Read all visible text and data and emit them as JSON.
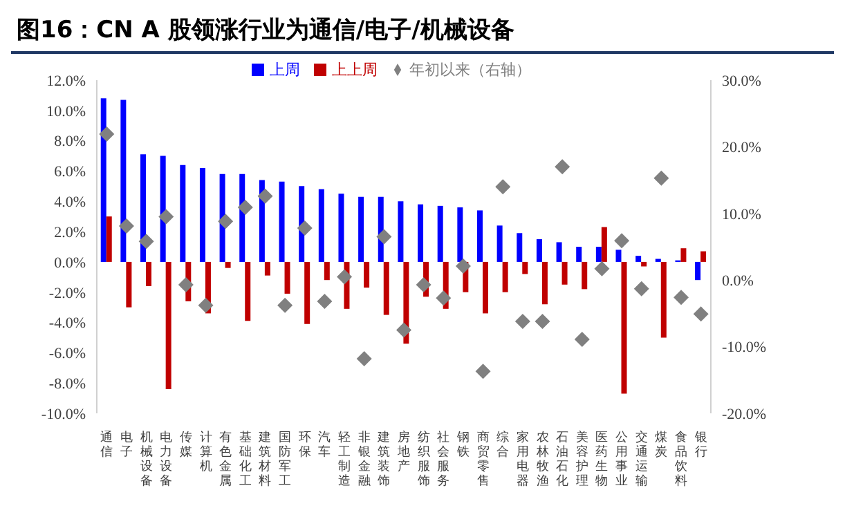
{
  "chart_data": {
    "type": "bar",
    "title": "图16：CN A 股领涨行业为通信/电子/机械设备",
    "categories": [
      "通信",
      "电子",
      "机械设备",
      "电力设备",
      "传媒",
      "计算机",
      "有色金属",
      "基础化工",
      "建筑材料",
      "国防军工",
      "环保",
      "汽车",
      "轻工制造",
      "非银金融",
      "建筑装饰",
      "房地产",
      "纺织服饰",
      "社会服务",
      "钢铁",
      "商贸零售",
      "综合",
      "家用电器",
      "农林牧渔",
      "石油石化",
      "美容护理",
      "医药生物",
      "公用事业",
      "交通运输",
      "煤炭",
      "食品饮料",
      "银行"
    ],
    "series": [
      {
        "name": "上周",
        "color": "#0000ff",
        "values": [
          10.8,
          10.7,
          7.1,
          7.0,
          6.4,
          6.2,
          5.8,
          5.8,
          5.4,
          5.3,
          5.0,
          4.8,
          4.5,
          4.3,
          4.3,
          4.0,
          3.8,
          3.7,
          3.6,
          3.4,
          2.4,
          1.9,
          1.5,
          1.3,
          1.0,
          1.0,
          0.8,
          0.4,
          0.2,
          0.1,
          -1.2
        ]
      },
      {
        "name": "上上周",
        "color": "#c00000",
        "values": [
          3.0,
          -3.0,
          -1.6,
          -8.4,
          -2.6,
          -3.4,
          -0.4,
          -3.9,
          -0.9,
          -2.1,
          -4.1,
          -1.2,
          -3.1,
          -1.7,
          -3.5,
          -5.4,
          -2.3,
          -3.1,
          -2.0,
          -3.4,
          -2.0,
          -0.8,
          -2.8,
          -1.5,
          -1.8,
          2.3,
          -8.7,
          -0.3,
          -5.0,
          0.9,
          0.7
        ]
      },
      {
        "name": "年初以来（右轴）",
        "type": "scatter",
        "axis": "y2",
        "marker": "diamond",
        "color": "#808080",
        "values": [
          21.9,
          8.1,
          5.8,
          9.5,
          -0.7,
          -3.8,
          8.8,
          10.9,
          12.6,
          -3.8,
          7.8,
          -3.2,
          0.5,
          -11.8,
          6.5,
          -7.5,
          -0.7,
          -2.7,
          2.1,
          -13.7,
          14.0,
          -6.2,
          -6.2,
          17.0,
          -8.9,
          1.7,
          5.9,
          -1.3,
          15.3,
          -2.6,
          -5.1
        ]
      }
    ],
    "ylim": [
      -10,
      12
    ],
    "yticks": [
      {
        "value": -10,
        "label": "-10.0%"
      },
      {
        "value": -8,
        "label": "-8.0%"
      },
      {
        "value": -6,
        "label": "-6.0%"
      },
      {
        "value": -4,
        "label": "-4.0%"
      },
      {
        "value": -2,
        "label": "-2.0%"
      },
      {
        "value": 0,
        "label": "0.0%"
      },
      {
        "value": 2,
        "label": "2.0%"
      },
      {
        "value": 4,
        "label": "4.0%"
      },
      {
        "value": 6,
        "label": "6.0%"
      },
      {
        "value": 8,
        "label": "8.0%"
      },
      {
        "value": 10,
        "label": "10.0%"
      },
      {
        "value": 12,
        "label": "12.0%"
      }
    ],
    "y2lim": [
      -20,
      30
    ],
    "y2ticks": [
      {
        "value": -20,
        "label": "-20.0%"
      },
      {
        "value": -10,
        "label": "-10.0%"
      },
      {
        "value": 0,
        "label": "0.0%"
      },
      {
        "value": 10,
        "label": "10.0%"
      },
      {
        "value": 20,
        "label": "20.0%"
      },
      {
        "value": 30,
        "label": "30.0%"
      }
    ],
    "legend": "top",
    "grid": false
  }
}
